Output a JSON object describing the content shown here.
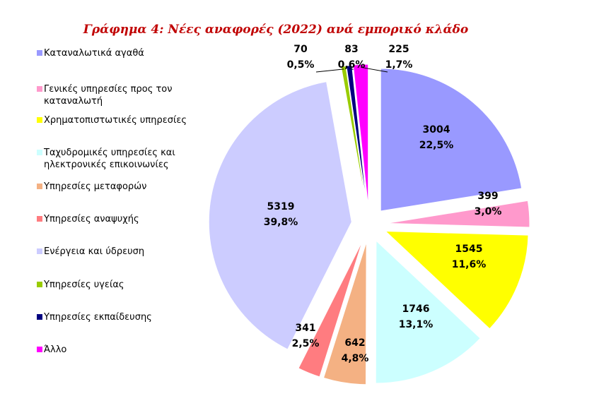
{
  "chart_data": {
    "type": "pie",
    "title": "Γράφημα 4: Νέες αναφορές (2022) ανά εμπορικό κλάδο",
    "legend_position": "left",
    "slices": [
      {
        "label": "Καταναλωτικά αγαθά",
        "value": 3004,
        "percent": "22,5%",
        "color": "#9999ff"
      },
      {
        "label": "Γενικές υπηρεσίες προς τον καταναλωτή",
        "value": 399,
        "percent": "3,0%",
        "color": "#ff99cc"
      },
      {
        "label": "Χρηματοπιστωτικές υπηρεσίες",
        "value": 1545,
        "percent": "11,6%",
        "color": "#ffff00"
      },
      {
        "label": "Ταχυδρομικές υπηρεσίες και ηλεκτρονικές επικοινωνίες",
        "value": 1746,
        "percent": "13,1%",
        "color": "#ccffff"
      },
      {
        "label": "Υπηρεσίες μεταφορών",
        "value": 642,
        "percent": "4,8%",
        "color": "#f4b183"
      },
      {
        "label": "Υπηρεσίες αναψυχής",
        "value": 341,
        "percent": "2,5%",
        "color": "#ff7c80"
      },
      {
        "label": "Ενέργεια και ύδρευση",
        "value": 5319,
        "percent": "39,8%",
        "color": "#ccccff"
      },
      {
        "label": "Υπηρεσίες υγείας",
        "value": 70,
        "percent": "0,5%",
        "color": "#99cc00"
      },
      {
        "label": "Υπηρεσίες εκπαίδευσης",
        "value": 83,
        "percent": "0,6%",
        "color": "#000080"
      },
      {
        "label": "Άλλο",
        "value": 225,
        "percent": "1,7%",
        "color": "#ff00ff"
      }
    ]
  }
}
